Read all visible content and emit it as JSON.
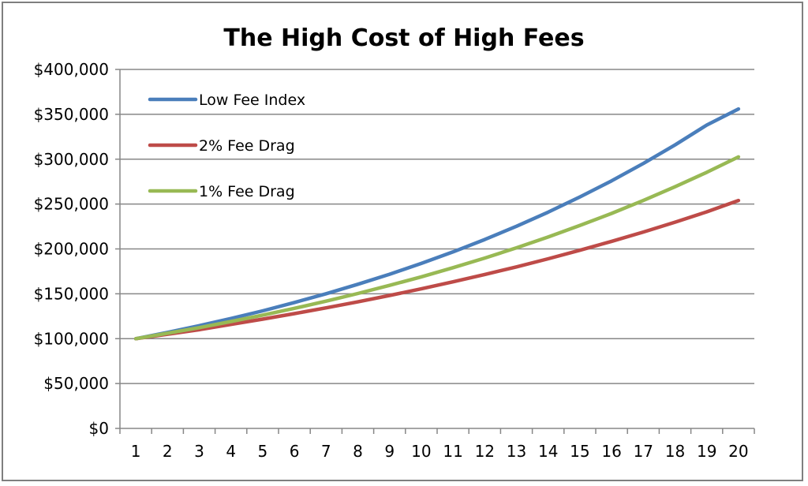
{
  "chart_data": {
    "type": "line",
    "title": "The High Cost of High Fees",
    "xlabel": "",
    "ylabel": "",
    "x": [
      1,
      2,
      3,
      4,
      5,
      6,
      7,
      8,
      9,
      10,
      11,
      12,
      13,
      14,
      15,
      16,
      17,
      18,
      19,
      20
    ],
    "ylim": [
      0,
      400000
    ],
    "yticks": [
      0,
      50000,
      100000,
      150000,
      200000,
      250000,
      300000,
      350000,
      400000
    ],
    "ytick_labels": [
      "$0",
      "$50,000",
      "$100,000",
      "$150,000",
      "$200,000",
      "$250,000",
      "$300,000",
      "$350,000",
      "$400,000"
    ],
    "xtick_labels": [
      "1",
      "2",
      "3",
      "4",
      "5",
      "6",
      "7",
      "8",
      "9",
      "10",
      "11",
      "12",
      "13",
      "14",
      "15",
      "16",
      "17",
      "18",
      "19",
      "20"
    ],
    "grid": "horizontal",
    "legend_position": "top-left",
    "series": [
      {
        "name": "Low Fee Index",
        "color": "#4a7ebb",
        "values": [
          100000,
          107000,
          114500,
          122500,
          131000,
          140300,
          150100,
          160600,
          171800,
          183800,
          196700,
          210500,
          225200,
          241000,
          257900,
          275900,
          295200,
          315900,
          338000,
          356000
        ]
      },
      {
        "name": "2% Fee Drag",
        "color": "#be4b48",
        "values": [
          100000,
          105000,
          110000,
          116000,
          121800,
          127900,
          134300,
          141000,
          148100,
          155500,
          163300,
          171500,
          180000,
          189000,
          198500,
          208400,
          218800,
          229800,
          241300,
          254000
        ]
      },
      {
        "name": "1% Fee Drag",
        "color": "#98b954",
        "values": [
          100000,
          106000,
          112300,
          119100,
          126200,
          133800,
          141800,
          150300,
          159400,
          168900,
          179100,
          189800,
          201200,
          213300,
          226100,
          239600,
          254000,
          269300,
          285400,
          302500
        ]
      }
    ]
  }
}
